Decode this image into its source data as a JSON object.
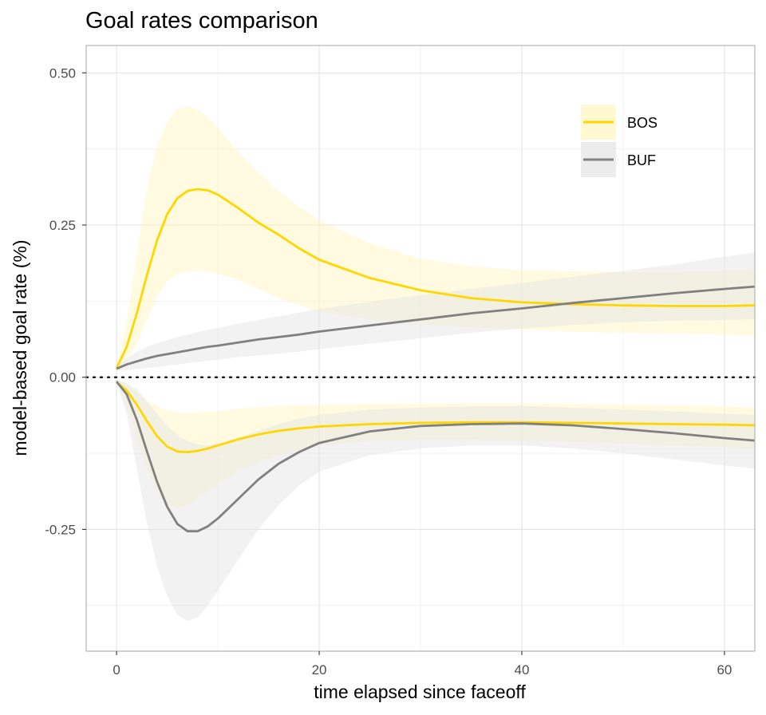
{
  "chart_data": {
    "type": "line",
    "title": "Goal rates comparison",
    "xlabel": "time elapsed since faceoff",
    "ylabel": "model-based goal rate (%)",
    "xlim": [
      -3,
      63
    ],
    "ylim": [
      -0.45,
      0.545
    ],
    "x_ticks": [
      {
        "value": 0,
        "label": "0"
      },
      {
        "value": 20,
        "label": "20"
      },
      {
        "value": 40,
        "label": "40"
      },
      {
        "value": 60,
        "label": "60"
      }
    ],
    "y_ticks": [
      {
        "value": 0.5,
        "label": "0.50"
      },
      {
        "value": 0.25,
        "label": "0.25"
      },
      {
        "value": 0.0,
        "label": "0.00"
      },
      {
        "value": -0.25,
        "label": "-0.25"
      }
    ],
    "grid": true,
    "reference_line": {
      "y": 0,
      "style": "dotted"
    },
    "legend": {
      "position": "top-right"
    },
    "x": [
      0,
      1,
      2,
      3,
      4,
      5,
      6,
      7,
      8,
      9,
      10,
      12,
      14,
      16,
      18,
      20,
      25,
      30,
      35,
      40,
      45,
      50,
      55,
      60,
      63
    ],
    "series": [
      {
        "name": "BOS",
        "color": "#FFD700",
        "band_color": "#FFF5C2",
        "upper": {
          "line": [
            0.015,
            0.05,
            0.105,
            0.168,
            0.225,
            0.268,
            0.294,
            0.306,
            0.309,
            0.307,
            0.3,
            0.278,
            0.254,
            0.234,
            0.212,
            0.193,
            0.163,
            0.143,
            0.13,
            0.123,
            0.12,
            0.118,
            0.117,
            0.117,
            0.118
          ],
          "low": [
            0.01,
            0.025,
            0.055,
            0.095,
            0.132,
            0.158,
            0.17,
            0.174,
            0.175,
            0.174,
            0.17,
            0.16,
            0.145,
            0.13,
            0.118,
            0.108,
            0.095,
            0.087,
            0.082,
            0.078,
            0.075,
            0.073,
            0.072,
            0.07,
            0.068
          ],
          "high": [
            0.02,
            0.09,
            0.2,
            0.31,
            0.38,
            0.42,
            0.44,
            0.445,
            0.44,
            0.427,
            0.41,
            0.37,
            0.336,
            0.306,
            0.28,
            0.258,
            0.22,
            0.195,
            0.182,
            0.176,
            0.174,
            0.173,
            0.173,
            0.175,
            0.176
          ]
        },
        "lower": {
          "line": [
            -0.008,
            -0.022,
            -0.045,
            -0.072,
            -0.097,
            -0.114,
            -0.122,
            -0.123,
            -0.121,
            -0.117,
            -0.112,
            -0.102,
            -0.094,
            -0.088,
            -0.084,
            -0.081,
            -0.077,
            -0.075,
            -0.074,
            -0.074,
            -0.075,
            -0.076,
            -0.077,
            -0.078,
            -0.079
          ],
          "low": [
            -0.01,
            -0.045,
            -0.1,
            -0.15,
            -0.19,
            -0.21,
            -0.215,
            -0.21,
            -0.2,
            -0.188,
            -0.175,
            -0.155,
            -0.14,
            -0.128,
            -0.12,
            -0.113,
            -0.105,
            -0.103,
            -0.103,
            -0.104,
            -0.106,
            -0.109,
            -0.112,
            -0.115,
            -0.118
          ],
          "high": [
            -0.005,
            -0.012,
            -0.025,
            -0.038,
            -0.048,
            -0.055,
            -0.058,
            -0.059,
            -0.058,
            -0.057,
            -0.056,
            -0.052,
            -0.049,
            -0.047,
            -0.046,
            -0.045,
            -0.044,
            -0.043,
            -0.043,
            -0.043,
            -0.044,
            -0.045,
            -0.046,
            -0.048,
            -0.05
          ]
        }
      },
      {
        "name": "BUF",
        "color": "#808080",
        "band_color": "#E5E5E5",
        "upper": {
          "line": [
            0.014,
            0.021,
            0.026,
            0.031,
            0.035,
            0.038,
            0.041,
            0.044,
            0.047,
            0.05,
            0.052,
            0.057,
            0.062,
            0.066,
            0.07,
            0.075,
            0.085,
            0.095,
            0.105,
            0.113,
            0.122,
            0.13,
            0.138,
            0.145,
            0.149
          ],
          "low": [
            0.01,
            0.012,
            0.013,
            0.015,
            0.017,
            0.019,
            0.021,
            0.023,
            0.025,
            0.027,
            0.029,
            0.033,
            0.036,
            0.039,
            0.042,
            0.046,
            0.055,
            0.064,
            0.073,
            0.08,
            0.086,
            0.09,
            0.093,
            0.094,
            0.095
          ],
          "high": [
            0.02,
            0.03,
            0.042,
            0.05,
            0.056,
            0.061,
            0.066,
            0.07,
            0.074,
            0.078,
            0.081,
            0.088,
            0.094,
            0.1,
            0.106,
            0.112,
            0.124,
            0.135,
            0.145,
            0.155,
            0.165,
            0.175,
            0.185,
            0.198,
            0.205
          ]
        },
        "lower": {
          "line": [
            -0.007,
            -0.028,
            -0.07,
            -0.122,
            -0.172,
            -0.213,
            -0.241,
            -0.253,
            -0.253,
            -0.245,
            -0.232,
            -0.2,
            -0.168,
            -0.142,
            -0.123,
            -0.108,
            -0.089,
            -0.08,
            -0.077,
            -0.076,
            -0.079,
            -0.085,
            -0.092,
            -0.1,
            -0.104
          ],
          "low": [
            -0.01,
            -0.06,
            -0.15,
            -0.24,
            -0.31,
            -0.36,
            -0.39,
            -0.4,
            -0.395,
            -0.375,
            -0.35,
            -0.3,
            -0.25,
            -0.21,
            -0.178,
            -0.155,
            -0.128,
            -0.117,
            -0.112,
            -0.112,
            -0.117,
            -0.125,
            -0.135,
            -0.145,
            -0.15
          ],
          "high": [
            -0.004,
            -0.01,
            -0.02,
            -0.04,
            -0.06,
            -0.08,
            -0.095,
            -0.105,
            -0.11,
            -0.112,
            -0.11,
            -0.1,
            -0.088,
            -0.077,
            -0.068,
            -0.062,
            -0.053,
            -0.05,
            -0.048,
            -0.047,
            -0.05,
            -0.053,
            -0.056,
            -0.06,
            -0.062
          ]
        }
      }
    ]
  }
}
